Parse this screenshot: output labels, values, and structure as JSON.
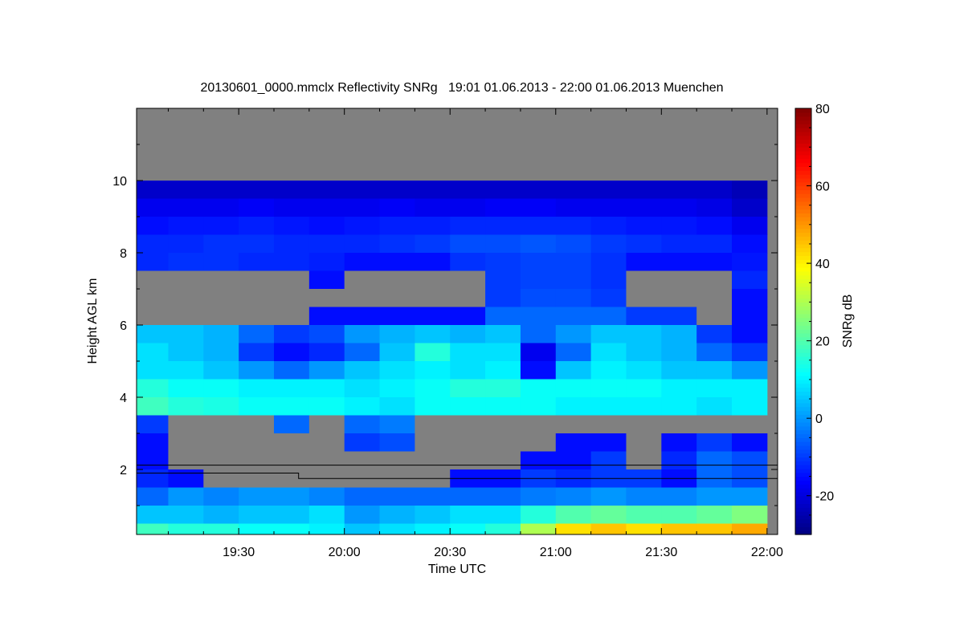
{
  "chart_data": {
    "type": "heatmap",
    "title": "20130601_0000.mmclx Reflectivity SNRg   19:01 01.06.2013 - 22:00 01.06.2013 Muenchen",
    "xlabel": "Time UTC",
    "ylabel": "Height AGL km",
    "colorbar_label": "SNRg dB",
    "colormap": "jet",
    "no_signal_color": "#808080",
    "clim": [
      -30,
      80
    ],
    "colorbar_ticks": [
      -20,
      0,
      20,
      40,
      60,
      80
    ],
    "colorbar_tick_labels": [
      "-20",
      "0",
      "20",
      "40",
      "60",
      "80"
    ],
    "xlim_minutes_after_1900": [
      1,
      183
    ],
    "x_ticks_minutes_after_1900": [
      30,
      60,
      90,
      120,
      150,
      180
    ],
    "x_tick_labels": [
      "19:30",
      "20:00",
      "20:30",
      "21:00",
      "21:30",
      "22:00"
    ],
    "ylim": [
      0.2,
      12
    ],
    "y_ticks": [
      2,
      4,
      6,
      8,
      10
    ],
    "y_tick_labels": [
      "2",
      "4",
      "6",
      "8",
      "10"
    ],
    "x_bin_minutes": 10,
    "y_bin_km": 0.5,
    "rows_top_to_bottom_km": [
      11.75,
      11.25,
      10.75,
      10.25,
      9.75,
      9.25,
      8.75,
      8.25,
      7.75,
      7.25,
      6.75,
      6.25,
      5.75,
      5.25,
      4.75,
      4.25,
      3.75,
      3.25,
      2.75,
      2.25,
      1.75,
      1.25,
      0.75,
      0.25
    ],
    "columns_center": [
      "19:05",
      "19:15",
      "19:25",
      "19:35",
      "19:45",
      "19:55",
      "20:05",
      "20:15",
      "20:25",
      "20:35",
      "20:45",
      "20:55",
      "21:05",
      "21:15",
      "21:25",
      "21:35",
      "21:45",
      "21:55"
    ],
    "values_dB": [
      [
        null,
        null,
        null,
        null,
        null,
        null,
        null,
        null,
        null,
        null,
        null,
        null,
        null,
        null,
        null,
        null,
        null,
        null
      ],
      [
        null,
        null,
        null,
        null,
        null,
        null,
        null,
        null,
        null,
        null,
        null,
        null,
        null,
        null,
        null,
        null,
        null,
        null
      ],
      [
        null,
        null,
        null,
        null,
        null,
        null,
        null,
        null,
        null,
        null,
        null,
        null,
        null,
        null,
        null,
        null,
        null,
        null
      ],
      [
        null,
        null,
        null,
        null,
        null,
        null,
        null,
        null,
        null,
        null,
        null,
        null,
        null,
        null,
        null,
        null,
        null,
        null
      ],
      [
        -22,
        -22,
        -22,
        -22,
        -22,
        -22,
        -22,
        -22,
        -22,
        -22,
        -22,
        -22,
        -22,
        -22,
        -22,
        -22,
        -22,
        -24
      ],
      [
        -18,
        -18,
        -18,
        -17,
        -18,
        -18,
        -18,
        -17,
        -18,
        -18,
        -17,
        -17,
        -18,
        -18,
        -18,
        -18,
        -19,
        -22
      ],
      [
        -15,
        -14,
        -14,
        -13,
        -14,
        -15,
        -14,
        -13,
        -13,
        -12,
        -12,
        -12,
        -12,
        -13,
        -14,
        -14,
        -15,
        -18
      ],
      [
        -12,
        -12,
        -11,
        -11,
        -12,
        -12,
        -12,
        -11,
        -10,
        -8,
        -8,
        -7,
        -8,
        -10,
        -11,
        -12,
        -12,
        -15
      ],
      [
        -12,
        -11,
        -11,
        -12,
        -12,
        -13,
        -15,
        -15,
        -15,
        -11,
        -10,
        -9,
        -9,
        -11,
        -15,
        -15,
        -15,
        -14
      ],
      [
        null,
        null,
        null,
        null,
        null,
        -15,
        null,
        null,
        null,
        null,
        -10,
        -9,
        -9,
        -11,
        null,
        null,
        null,
        -12
      ],
      [
        null,
        null,
        null,
        null,
        null,
        null,
        null,
        null,
        null,
        null,
        -10,
        -8,
        -8,
        -10,
        null,
        null,
        null,
        -15
      ],
      [
        null,
        null,
        null,
        null,
        null,
        -15,
        -15,
        -15,
        -15,
        -15,
        -5,
        -5,
        -5,
        -5,
        -10,
        -10,
        null,
        -15
      ],
      [
        5,
        5,
        3,
        -5,
        -10,
        -8,
        0,
        3,
        5,
        3,
        5,
        -5,
        0,
        5,
        5,
        3,
        -10,
        -15
      ],
      [
        8,
        5,
        3,
        -10,
        -15,
        -12,
        -5,
        5,
        15,
        8,
        8,
        -18,
        -5,
        8,
        5,
        3,
        -5,
        -10
      ],
      [
        8,
        8,
        5,
        0,
        -5,
        0,
        5,
        8,
        10,
        8,
        10,
        -15,
        5,
        10,
        8,
        5,
        5,
        0
      ],
      [
        15,
        12,
        12,
        10,
        10,
        10,
        8,
        10,
        12,
        15,
        15,
        12,
        12,
        12,
        12,
        10,
        10,
        10
      ],
      [
        18,
        15,
        14,
        12,
        12,
        12,
        10,
        8,
        12,
        12,
        12,
        12,
        10,
        10,
        10,
        10,
        8,
        10
      ],
      [
        -10,
        null,
        null,
        null,
        -5,
        null,
        -5,
        -3,
        null,
        null,
        null,
        null,
        null,
        null,
        null,
        null,
        null,
        null
      ],
      [
        -15,
        null,
        null,
        null,
        null,
        null,
        -10,
        -8,
        null,
        null,
        null,
        null,
        -15,
        -15,
        null,
        -15,
        -10,
        -15
      ],
      [
        -15,
        null,
        null,
        null,
        null,
        null,
        null,
        null,
        null,
        null,
        null,
        -15,
        -15,
        -10,
        null,
        -12,
        -5,
        -8
      ],
      [
        -12,
        -15,
        null,
        null,
        null,
        null,
        null,
        null,
        null,
        -15,
        -15,
        -10,
        -12,
        -10,
        -10,
        -15,
        -5,
        -8
      ],
      [
        -5,
        0,
        -2,
        0,
        0,
        -2,
        -5,
        -5,
        -5,
        -5,
        -5,
        -3,
        -2,
        0,
        -2,
        -2,
        0,
        0
      ],
      [
        5,
        5,
        3,
        5,
        5,
        8,
        0,
        3,
        5,
        8,
        8,
        15,
        20,
        22,
        20,
        20,
        22,
        25
      ],
      [
        18,
        15,
        15,
        12,
        12,
        10,
        5,
        8,
        10,
        12,
        15,
        30,
        42,
        45,
        42,
        45,
        45,
        48
      ]
    ],
    "overlay_lines": [
      {
        "name": "upper-boundary",
        "points_minutes_km": [
          [
            1,
            2.12
          ],
          [
            183,
            2.12
          ]
        ]
      },
      {
        "name": "step-boundary",
        "points_minutes_km": [
          [
            1,
            1.9
          ],
          [
            47,
            1.9
          ],
          [
            47,
            1.75
          ],
          [
            183,
            1.75
          ]
        ]
      }
    ]
  }
}
